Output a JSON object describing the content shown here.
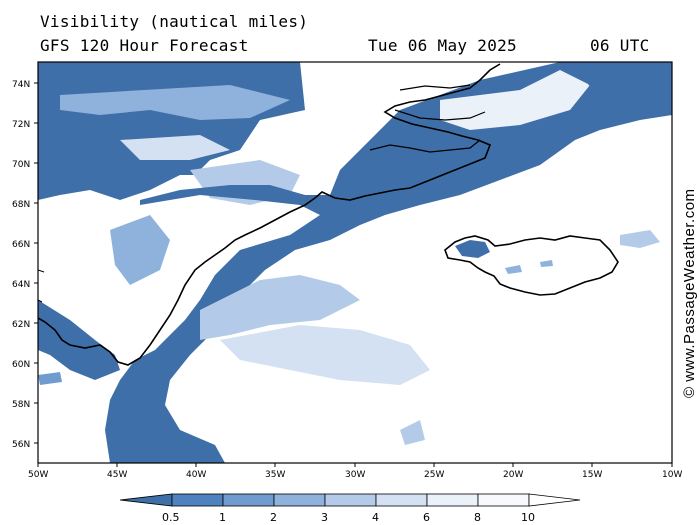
{
  "header": {
    "title_line1": "Visibility (nautical miles)",
    "title_line2": "GFS 120 Hour Forecast",
    "date": "Tue 06 May 2025",
    "time": "06 UTC"
  },
  "axes": {
    "lat_labels": [
      "74N",
      "72N",
      "70N",
      "68N",
      "66N",
      "64N",
      "62N",
      "60N",
      "58N",
      "56N"
    ],
    "lon_labels": [
      "50W",
      "45W",
      "40W",
      "35W",
      "30W",
      "25W",
      "20W",
      "15W",
      "10W"
    ]
  },
  "colorbar": {
    "labels": [
      "0.5",
      "1",
      "2",
      "3",
      "4",
      "6",
      "8",
      "10"
    ],
    "colors": [
      "#3f6fa8",
      "#4d82bf",
      "#6f9bcf",
      "#8fb2dc",
      "#b3cbe8",
      "#d3e1f2",
      "#eaf1f9",
      "#ffffff"
    ]
  },
  "credit": "© www.PassageWeather.com",
  "colors": {
    "low_visibility": "#3f6fa8",
    "coast": "#000000",
    "frame": "#000000"
  }
}
